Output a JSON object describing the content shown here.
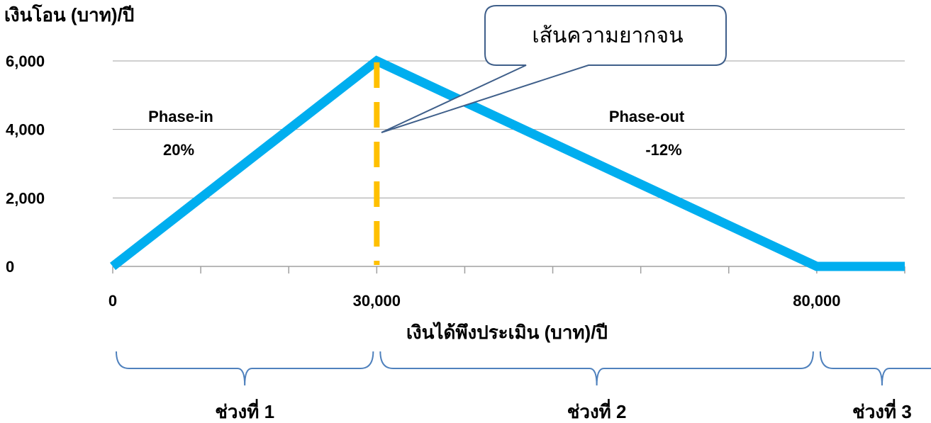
{
  "chart_data": {
    "type": "line",
    "ylabel": "เงินโอน (บาท)/ปี",
    "xlabel": "เงินได้พึงประเมิน (บาท)/ปี",
    "xlim": [
      0,
      90000
    ],
    "ylim": [
      0,
      6000
    ],
    "y_ticks": [
      0,
      2000,
      4000,
      6000
    ],
    "y_tick_labels": [
      "0",
      "2,000",
      "4,000",
      "6,000"
    ],
    "x_ticks": [
      0,
      10000,
      20000,
      30000,
      40000,
      50000,
      60000,
      70000,
      80000,
      90000
    ],
    "x_tick_labels": [
      {
        "value": 0,
        "label": "0"
      },
      {
        "value": 30000,
        "label": "30,000"
      },
      {
        "value": 80000,
        "label": "80,000"
      }
    ],
    "grid": "horizontal",
    "series": [
      {
        "x": [
          0,
          30000,
          80000,
          90000
        ],
        "y": [
          0,
          6000,
          0,
          0
        ],
        "color": "#00AEEF"
      }
    ],
    "reference_line": {
      "x": 30000,
      "style": "dashed",
      "color": "#FFC000",
      "label": "เส้นความยากจน"
    },
    "annotations": [
      {
        "text": "Phase-in",
        "x": 6500,
        "y": 4400
      },
      {
        "text": "20%",
        "x": 6000,
        "y": 3500
      },
      {
        "text": "Phase-out",
        "x": 66000,
        "y": 4400
      },
      {
        "text": "-12%",
        "x": 63500,
        "y": 3500
      }
    ],
    "brackets": [
      {
        "from": 0,
        "to": 30000,
        "label": "ช่วงที่ 1"
      },
      {
        "from": 30000,
        "to": 80000,
        "label": "ช่วงที่ 2"
      },
      {
        "from": 80000,
        "to": 90000,
        "label": "ช่วงที่ 3"
      }
    ]
  },
  "colors": {
    "line": "#00AEEF",
    "poverty_line": "#FFC000",
    "grid": "#A0A0A0",
    "bracket": "#4F81BD",
    "callout_border": "#3F5F8A"
  }
}
